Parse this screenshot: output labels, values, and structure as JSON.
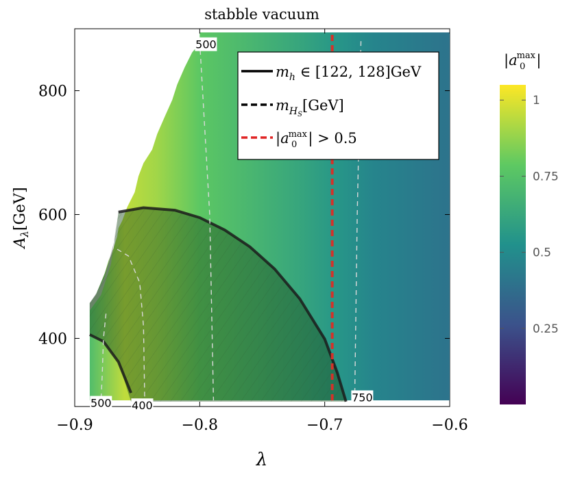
{
  "chart_data": {
    "type": "heatmap",
    "title": "stabble vacuum",
    "xlabel": "λ",
    "ylabel": "A_λ[GeV]",
    "xlim": [
      -0.9,
      -0.6
    ],
    "ylim": [
      290,
      900
    ],
    "x_ticks": [
      -0.9,
      -0.8,
      -0.7,
      -0.6
    ],
    "x_tick_labels": [
      "−0.9",
      "−0.8",
      "−0.7",
      "−0.6"
    ],
    "y_ticks": [
      400,
      600,
      800
    ],
    "y_tick_labels": [
      "400",
      "600",
      "800"
    ],
    "colorbar": {
      "label": "|a0max|",
      "range": [
        0,
        1.05
      ],
      "ticks": [
        1,
        0.75,
        0.5,
        0.25
      ],
      "tick_labels": [
        "1",
        "0.75",
        "0.5",
        "0.25"
      ],
      "colors": [
        "#440154",
        "#3b528b",
        "#21918c",
        "#5ec962",
        "#fde725"
      ]
    },
    "fill_gradient": [
      {
        "x": -0.888,
        "value": 0.73
      },
      {
        "x": -0.86,
        "value": 0.95
      },
      {
        "x": -0.835,
        "value": 0.9
      },
      {
        "x": -0.8,
        "value": 0.78
      },
      {
        "x": -0.76,
        "value": 0.7
      },
      {
        "x": -0.72,
        "value": 0.62
      },
      {
        "x": -0.69,
        "value": 0.55
      },
      {
        "x": -0.66,
        "value": 0.47
      },
      {
        "x": -0.6,
        "value": 0.4
      }
    ],
    "stable_region_boundary": [
      [
        -0.888,
        300
      ],
      [
        -0.888,
        457
      ],
      [
        -0.883,
        471
      ],
      [
        -0.879,
        490
      ],
      [
        -0.876,
        505
      ],
      [
        -0.873,
        525
      ],
      [
        -0.869,
        545
      ],
      [
        -0.866,
        565
      ],
      [
        -0.865,
        578
      ],
      [
        -0.862,
        590
      ],
      [
        -0.858,
        612
      ],
      [
        -0.852,
        636
      ],
      [
        -0.849,
        662
      ],
      [
        -0.845,
        683
      ],
      [
        -0.838,
        705
      ],
      [
        -0.834,
        730
      ],
      [
        -0.828,
        758
      ],
      [
        -0.822,
        785
      ],
      [
        -0.818,
        810
      ],
      [
        -0.812,
        838
      ],
      [
        -0.806,
        862
      ],
      [
        -0.8,
        876
      ],
      [
        -0.8,
        894
      ],
      [
        -0.6,
        894
      ],
      [
        -0.6,
        300
      ]
    ],
    "series": [
      {
        "name": "m_h ∈ [122,128]GeV",
        "style": "solid",
        "color": "#1b1b1b",
        "x": [
          -0.865,
          -0.845,
          -0.82,
          -0.8,
          -0.78,
          -0.76,
          -0.74,
          -0.72,
          -0.7,
          -0.69,
          -0.683
        ],
        "y": [
          604,
          611,
          607,
          595,
          575,
          548,
          512,
          464,
          399,
          345,
          298
        ]
      },
      {
        "name": "m_h lower contour",
        "style": "solid",
        "color": "#1b1b1b",
        "x": [
          -0.888,
          -0.877,
          -0.865,
          -0.855
        ],
        "y": [
          406,
          395,
          362,
          312
        ]
      },
      {
        "name": "m_HS contour 500 (left)",
        "style": "dashed",
        "color": "#d9d9d9",
        "x": [
          -0.875,
          -0.877,
          -0.878,
          -0.879
        ],
        "y": [
          440,
          400,
          340,
          300
        ]
      },
      {
        "name": "m_HS contour 400",
        "style": "dashed",
        "color": "#d9d9d9",
        "x": [
          -0.866,
          -0.857,
          -0.848,
          -0.845,
          -0.844
        ],
        "y": [
          544,
          533,
          490,
          420,
          300
        ]
      },
      {
        "name": "m_HS contour 500",
        "style": "dashed",
        "color": "#d9d9d9",
        "x": [
          -0.8,
          -0.792,
          -0.789
        ],
        "y": [
          880,
          600,
          300
        ]
      },
      {
        "name": "m_HS contour 750",
        "style": "dashed",
        "color": "#d9d9d9",
        "x": [
          -0.671,
          -0.674,
          -0.676
        ],
        "y": [
          880,
          600,
          300
        ]
      },
      {
        "name": "|a0max| > 0.5",
        "style": "dashed",
        "color": "#d3322a",
        "x": [
          -0.694,
          -0.694
        ],
        "y": [
          300,
          894
        ]
      }
    ],
    "shaded_region": {
      "name": "m_h ∈ [122,128]GeV region",
      "x": [
        -0.865,
        -0.845,
        -0.82,
        -0.8,
        -0.78,
        -0.76,
        -0.74,
        -0.72,
        -0.7,
        -0.69,
        -0.683,
        -0.855,
        -0.865,
        -0.877,
        -0.888,
        -0.888,
        -0.883,
        -0.876,
        -0.869
      ],
      "y": [
        604,
        611,
        607,
        595,
        575,
        548,
        512,
        464,
        399,
        345,
        298,
        298,
        362,
        395,
        406,
        457,
        471,
        505,
        545
      ]
    },
    "annotations": [
      {
        "text": "500",
        "x": -0.795,
        "y": 875
      },
      {
        "text": "500",
        "x": -0.879,
        "y": 296
      },
      {
        "text": "400",
        "x": -0.846,
        "y": 292
      },
      {
        "text": "750",
        "x": -0.67,
        "y": 305
      }
    ],
    "legend": {
      "placement": "top-right",
      "entries": [
        {
          "label": "m_h ∈ [122, 128]GeV",
          "style": "solid",
          "color": "#000000"
        },
        {
          "label": "m_HS[GeV]",
          "style": "dashed",
          "color": "#000000"
        },
        {
          "label": "|a0max| > 0.5",
          "style": "dashed",
          "color": "#e02424"
        }
      ]
    }
  }
}
